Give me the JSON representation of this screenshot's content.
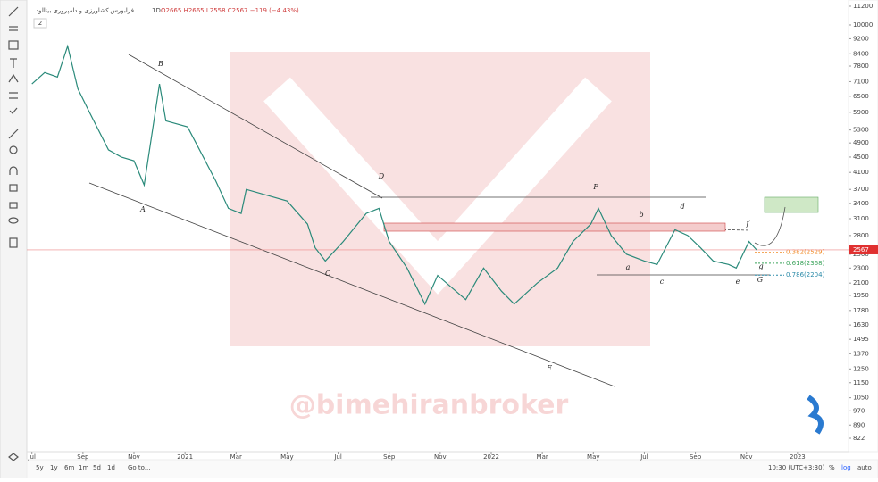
{
  "header": {
    "symbol": "کشاورزی و دامپروری بینالود",
    "interval": "1D",
    "exchange": "فرابورس",
    "ohlc": "O2665 H2665 L2558 C2567 −119 (−4.43%)",
    "indicator_toggle": "2"
  },
  "watermark": "@bimehiranbroker",
  "bottom_bar": {
    "ranges": [
      "5y",
      "1y",
      "6m",
      "1m",
      "5d",
      "1d"
    ],
    "goto": "Go to...",
    "time": "10:30 (UTC+3:30)",
    "percent": "%",
    "log": "log",
    "auto": "auto"
  },
  "chart_data": {
    "type": "line",
    "color": "#2a8a7a",
    "log_scale": true,
    "x": [
      0,
      0.5,
      1,
      1.4,
      1.8,
      2.2,
      3,
      3.5,
      4,
      4.4,
      5,
      5.25,
      6.1,
      7.2,
      7.7,
      8.2,
      8.4,
      10,
      10.8,
      11.1,
      11.5,
      12.2,
      13.1,
      13.6,
      14,
      14.7,
      15.4,
      15.9,
      17,
      17.7,
      18.4,
      18.9,
      19.8,
      20.6,
      21.2,
      21.9,
      22.2,
      22.7,
      23.3,
      24,
      24.5,
      25.2,
      25.7,
      26.2,
      26.7,
      27.3,
      27.6,
      28.1,
      28.4
    ],
    "values": [
      7000,
      7500,
      7300,
      8800,
      6800,
      6000,
      4700,
      4500,
      4400,
      3800,
      7000,
      5600,
      5400,
      3900,
      3300,
      3200,
      3700,
      3450,
      3000,
      2600,
      2400,
      2700,
      3200,
      3300,
      2700,
      2300,
      1850,
      2200,
      1900,
      2300,
      2000,
      1850,
      2100,
      2300,
      2700,
      3000,
      3300,
      2800,
      2500,
      2400,
      2350,
      2900,
      2800,
      2600,
      2400,
      2350,
      2300,
      2700,
      2567
    ],
    "xlim": [
      -0.2,
      32
    ],
    "xticks": [
      {
        "value": 0,
        "label": "Jul"
      },
      {
        "value": 2,
        "label": "Sep"
      },
      {
        "value": 4,
        "label": "Nov"
      },
      {
        "value": 6,
        "label": "2021"
      },
      {
        "value": 8,
        "label": "Mar"
      },
      {
        "value": 10,
        "label": "May"
      },
      {
        "value": 12,
        "label": "Jul"
      },
      {
        "value": 14,
        "label": "Sep"
      },
      {
        "value": 16,
        "label": "Nov"
      },
      {
        "value": 18,
        "label": "2022"
      },
      {
        "value": 20,
        "label": "Mar"
      },
      {
        "value": 22,
        "label": "May"
      },
      {
        "value": 24,
        "label": "Jul"
      },
      {
        "value": 26,
        "label": "Sep"
      },
      {
        "value": 28,
        "label": "Nov"
      },
      {
        "value": 30,
        "label": "2023"
      }
    ],
    "ylim": [
      783,
      11630
    ],
    "yticks": [
      11200,
      10000,
      9200,
      8400,
      7800,
      7100,
      6500,
      5900,
      5300,
      4900,
      4500,
      4100,
      3700,
      3400,
      3100,
      2800,
      2500,
      2300,
      2100,
      1950,
      1780,
      1630,
      1495,
      1370,
      1250,
      1150,
      1050,
      970,
      890,
      822
    ],
    "last_price": 2567,
    "fib_levels": [
      {
        "value": 2529,
        "label": "0.382(2529)",
        "color": "#f08a24"
      },
      {
        "value": 2368,
        "label": "0.618(2368)",
        "color": "#3aa35a"
      },
      {
        "value": 2204,
        "label": "0.786(2204)",
        "color": "#2a8aa8"
      }
    ],
    "annotations": [
      "A",
      "B",
      "C",
      "D",
      "E",
      "F",
      "G",
      "a",
      "b",
      "c",
      "d",
      "e",
      "f",
      "g"
    ]
  }
}
